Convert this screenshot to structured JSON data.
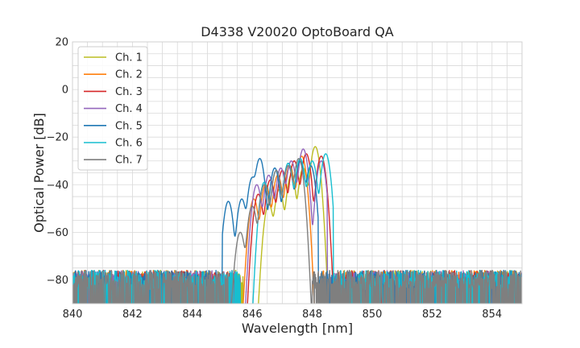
{
  "chart_data": {
    "type": "line",
    "title": "D4338 V20020 OptoBoard QA",
    "xlabel": "Wavelength [nm]",
    "ylabel": "Optical Power [dB]",
    "xlim": [
      840,
      855
    ],
    "ylim": [
      -90,
      20
    ],
    "x_ticks": [
      840,
      842,
      844,
      846,
      848,
      850,
      852,
      854
    ],
    "y_ticks": [
      20,
      0,
      -20,
      -40,
      -60,
      -80
    ],
    "x_tick_labels": [
      "840",
      "842",
      "844",
      "846",
      "848",
      "850",
      "852",
      "854"
    ],
    "y_tick_labels": [
      "20",
      "0",
      "−20",
      "−40",
      "−60",
      "−80"
    ],
    "x_minor_step": 0.5,
    "y_minor_step": 5,
    "grid": true,
    "legend_position": "top-left",
    "noise_floor_db": -80,
    "series": [
      {
        "name": "Ch. 1",
        "color": "#bcbd22",
        "band": [
          845.7,
          848.6
        ],
        "peaks": [
          [
            846.55,
            -48
          ],
          [
            846.9,
            -42
          ],
          [
            847.3,
            -36
          ],
          [
            847.7,
            -33
          ],
          [
            848.1,
            -24
          ]
        ]
      },
      {
        "name": "Ch. 2",
        "color": "#ff7f0e",
        "band": [
          845.4,
          848.3
        ],
        "peaks": [
          [
            846.05,
            -46
          ],
          [
            846.45,
            -40
          ],
          [
            846.85,
            -36
          ],
          [
            847.25,
            -32
          ],
          [
            847.65,
            -28
          ]
        ]
      },
      {
        "name": "Ch. 3",
        "color": "#d62728",
        "band": [
          845.5,
          848.8
        ],
        "peaks": [
          [
            846.2,
            -44
          ],
          [
            846.6,
            -38
          ],
          [
            847.0,
            -34
          ],
          [
            847.4,
            -30
          ],
          [
            847.8,
            -27
          ],
          [
            848.3,
            -28
          ]
        ]
      },
      {
        "name": "Ch. 4",
        "color": "#9467bd",
        "band": [
          845.6,
          848.5
        ],
        "peaks": [
          [
            846.15,
            -40
          ],
          [
            846.55,
            -36
          ],
          [
            846.95,
            -33
          ],
          [
            847.3,
            -30
          ],
          [
            847.7,
            -25
          ],
          [
            848.3,
            -30
          ]
        ]
      },
      {
        "name": "Ch. 5",
        "color": "#1f77b4",
        "band": [
          845.0,
          848.2
        ],
        "peaks": [
          [
            845.2,
            -47
          ],
          [
            845.65,
            -46
          ],
          [
            846.0,
            -37
          ],
          [
            846.25,
            -29
          ],
          [
            846.75,
            -33
          ],
          [
            847.2,
            -31
          ],
          [
            847.6,
            -30
          ],
          [
            847.95,
            -32
          ]
        ]
      },
      {
        "name": "Ch. 6",
        "color": "#17becf",
        "band": [
          845.6,
          848.7
        ],
        "peaks": [
          [
            846.4,
            -39
          ],
          [
            846.8,
            -34
          ],
          [
            847.2,
            -31
          ],
          [
            847.6,
            -29
          ],
          [
            848.0,
            -30
          ],
          [
            848.45,
            -27
          ]
        ]
      },
      {
        "name": "Ch. 7",
        "color": "#7f7f7f",
        "band": [
          845.2,
          848.0
        ],
        "peaks": [
          [
            845.6,
            -60
          ],
          [
            846.0,
            -49
          ],
          [
            846.4,
            -40
          ],
          [
            846.8,
            -34
          ],
          [
            847.2,
            -32
          ],
          [
            847.55,
            -29
          ]
        ]
      }
    ]
  }
}
